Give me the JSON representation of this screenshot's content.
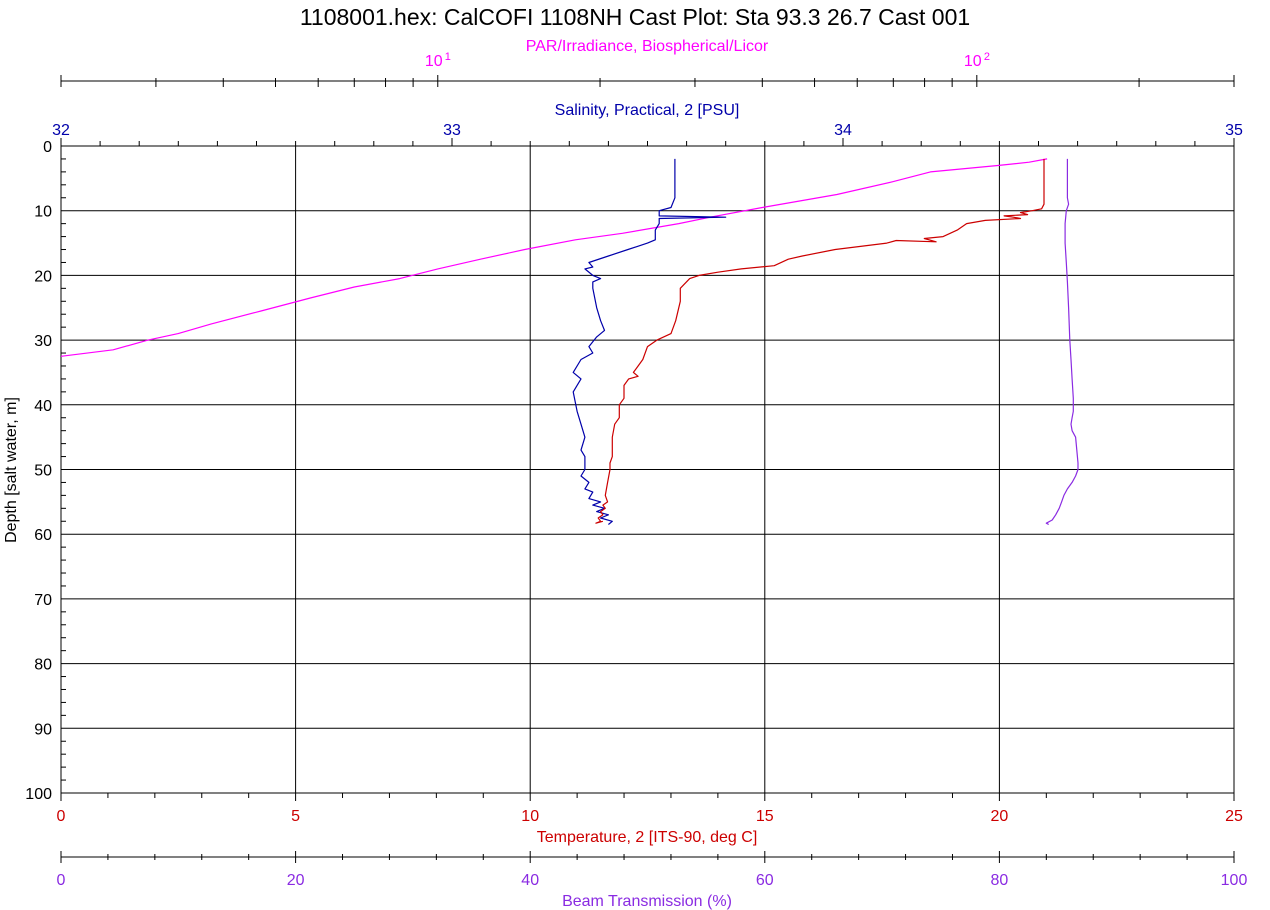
{
  "chart_data": {
    "type": "line",
    "title": "1108001.hex: CalCOFI 1108NH Cast Plot: Sta 93.3 26.7 Cast 001",
    "grid": true,
    "colors": {
      "par": "#ff00ff",
      "salinity": "#0000aa",
      "temperature": "#cc0000",
      "beam": "#8a2be2",
      "blue_tick": "#0000cc"
    },
    "axes": {
      "depth": {
        "label": "Depth [salt water, m]",
        "range": [
          0,
          100
        ],
        "inverted": true,
        "ticks": [
          "0",
          "10",
          "20",
          "30",
          "40",
          "50",
          "60",
          "70",
          "80",
          "90",
          "100"
        ]
      },
      "par": {
        "label": "PAR/Irradiance, Biospherical/Licor",
        "scale": "log",
        "range": [
          2,
          300
        ],
        "tick_labels": [
          {
            "value": 10,
            "base": "10",
            "exp": "1"
          },
          {
            "value": 100,
            "base": "10",
            "exp": "2"
          }
        ]
      },
      "salinity": {
        "label": "Salinity, Practical, 2 [PSU]",
        "range": [
          32,
          35
        ],
        "ticks": [
          "32",
          "33",
          "34",
          "35"
        ]
      },
      "temperature": {
        "label": "Temperature, 2 [ITS-90, deg C]",
        "range": [
          0,
          25
        ],
        "ticks": [
          "0",
          "5",
          "10",
          "15",
          "20",
          "25"
        ]
      },
      "beam": {
        "label": "Beam Transmission (%)",
        "range": [
          0,
          100
        ],
        "ticks": [
          "0",
          "20",
          "40",
          "60",
          "80",
          "100"
        ]
      }
    },
    "series": [
      {
        "key": "par",
        "name": "PAR/Irradiance, Biospherical/Licor",
        "points": [
          [
            135,
            2
          ],
          [
            125,
            2.5
          ],
          [
            110,
            3
          ],
          [
            95,
            3.5
          ],
          [
            82,
            4
          ],
          [
            70,
            5.5
          ],
          [
            55,
            7.5
          ],
          [
            40,
            9.5
          ],
          [
            32,
            11
          ],
          [
            28,
            12
          ],
          [
            22,
            13.5
          ],
          [
            18,
            14.5
          ],
          [
            14.5,
            16
          ],
          [
            12,
            17.5
          ],
          [
            10,
            19
          ],
          [
            8.5,
            20.5
          ],
          [
            7,
            21.8
          ],
          [
            5.8,
            23.5
          ],
          [
            4.7,
            25.5
          ],
          [
            3.8,
            27.5
          ],
          [
            3.3,
            29
          ],
          [
            2.9,
            30
          ],
          [
            2.5,
            31.5
          ],
          [
            2.0,
            32.5
          ]
        ]
      },
      {
        "key": "salinity",
        "name": "Salinity, Practical, 2 [PSU]",
        "points": [
          [
            33.57,
            2
          ],
          [
            33.57,
            4
          ],
          [
            33.57,
            6
          ],
          [
            33.57,
            8
          ],
          [
            33.56,
            9.5
          ],
          [
            33.53,
            10
          ],
          [
            33.53,
            10.8
          ],
          [
            33.7,
            11
          ],
          [
            33.53,
            11.2
          ],
          [
            33.53,
            12
          ],
          [
            33.52,
            13
          ],
          [
            33.52,
            14.5
          ],
          [
            33.5,
            15
          ],
          [
            33.45,
            16
          ],
          [
            33.4,
            17
          ],
          [
            33.35,
            18
          ],
          [
            33.36,
            18.7
          ],
          [
            33.34,
            19
          ],
          [
            33.36,
            20
          ],
          [
            33.38,
            20.5
          ],
          [
            33.36,
            21
          ],
          [
            33.36,
            22
          ],
          [
            33.37,
            25
          ],
          [
            33.38,
            27
          ],
          [
            33.39,
            28.5
          ],
          [
            33.37,
            29.5
          ],
          [
            33.35,
            31
          ],
          [
            33.36,
            32
          ],
          [
            33.33,
            33
          ],
          [
            33.31,
            35
          ],
          [
            33.33,
            36
          ],
          [
            33.31,
            38
          ],
          [
            33.32,
            41
          ],
          [
            33.33,
            43
          ],
          [
            33.34,
            45
          ],
          [
            33.33,
            47
          ],
          [
            33.34,
            48
          ],
          [
            33.34,
            50
          ],
          [
            33.33,
            51
          ],
          [
            33.35,
            52
          ],
          [
            33.34,
            53
          ],
          [
            33.36,
            53.5
          ],
          [
            33.35,
            54.5
          ],
          [
            33.38,
            55
          ],
          [
            33.36,
            55.5
          ],
          [
            33.39,
            56
          ],
          [
            33.37,
            56.5
          ],
          [
            33.4,
            57
          ],
          [
            33.38,
            57.5
          ],
          [
            33.41,
            58
          ],
          [
            33.4,
            58.5
          ]
        ]
      },
      {
        "key": "temperature",
        "name": "Temperature, 2 [ITS-90, deg C]",
        "points": [
          [
            20.95,
            2
          ],
          [
            20.95,
            6
          ],
          [
            20.95,
            9
          ],
          [
            20.9,
            9.7
          ],
          [
            20.7,
            10
          ],
          [
            20.45,
            10.3
          ],
          [
            20.6,
            10.6
          ],
          [
            20.1,
            10.8
          ],
          [
            20.3,
            11
          ],
          [
            20.45,
            11.2
          ],
          [
            19.7,
            11.5
          ],
          [
            19.3,
            12
          ],
          [
            19.1,
            13
          ],
          [
            18.8,
            14
          ],
          [
            18.4,
            14.3
          ],
          [
            18.65,
            14.8
          ],
          [
            17.8,
            14.6
          ],
          [
            17.6,
            15
          ],
          [
            16.5,
            16
          ],
          [
            15.8,
            17
          ],
          [
            15.5,
            17.5
          ],
          [
            15.2,
            18.5
          ],
          [
            14.5,
            19
          ],
          [
            14.0,
            19.5
          ],
          [
            13.6,
            20
          ],
          [
            13.4,
            20.5
          ],
          [
            13.2,
            22
          ],
          [
            13.2,
            24
          ],
          [
            13.1,
            27
          ],
          [
            13.0,
            29
          ],
          [
            12.7,
            30
          ],
          [
            12.5,
            31
          ],
          [
            12.4,
            33
          ],
          [
            12.3,
            34
          ],
          [
            12.2,
            35
          ],
          [
            12.3,
            35.6
          ],
          [
            12.1,
            36
          ],
          [
            12.0,
            37
          ],
          [
            12.0,
            39
          ],
          [
            11.9,
            40
          ],
          [
            11.9,
            42
          ],
          [
            11.8,
            43
          ],
          [
            11.75,
            45
          ],
          [
            11.75,
            48
          ],
          [
            11.7,
            49
          ],
          [
            11.7,
            50
          ],
          [
            11.65,
            52
          ],
          [
            11.6,
            54
          ],
          [
            11.65,
            55
          ],
          [
            11.55,
            55.5
          ],
          [
            11.6,
            56
          ],
          [
            11.5,
            56.5
          ],
          [
            11.55,
            57
          ],
          [
            11.45,
            57.5
          ],
          [
            11.5,
            58
          ],
          [
            11.4,
            58.3
          ],
          [
            11.55,
            58
          ]
        ]
      },
      {
        "key": "beam",
        "name": "Beam Transmission (%)",
        "points": [
          [
            85.8,
            2
          ],
          [
            85.8,
            5
          ],
          [
            85.8,
            8
          ],
          [
            85.9,
            9
          ],
          [
            85.7,
            10
          ],
          [
            85.6,
            12
          ],
          [
            85.6,
            15
          ],
          [
            85.7,
            18
          ],
          [
            85.8,
            21
          ],
          [
            85.9,
            25
          ],
          [
            86.0,
            30
          ],
          [
            86.1,
            33
          ],
          [
            86.2,
            36
          ],
          [
            86.3,
            39
          ],
          [
            86.3,
            41
          ],
          [
            86.2,
            42
          ],
          [
            86.1,
            43
          ],
          [
            86.2,
            44
          ],
          [
            86.5,
            45
          ],
          [
            86.6,
            47
          ],
          [
            86.7,
            49
          ],
          [
            86.7,
            50
          ],
          [
            86.5,
            51
          ],
          [
            86.2,
            52
          ],
          [
            85.8,
            53
          ],
          [
            85.5,
            54
          ],
          [
            85.3,
            55
          ],
          [
            85.1,
            56
          ],
          [
            84.8,
            57
          ],
          [
            84.5,
            57.8
          ],
          [
            84.0,
            58.3
          ],
          [
            84.2,
            58.5
          ]
        ]
      }
    ]
  }
}
